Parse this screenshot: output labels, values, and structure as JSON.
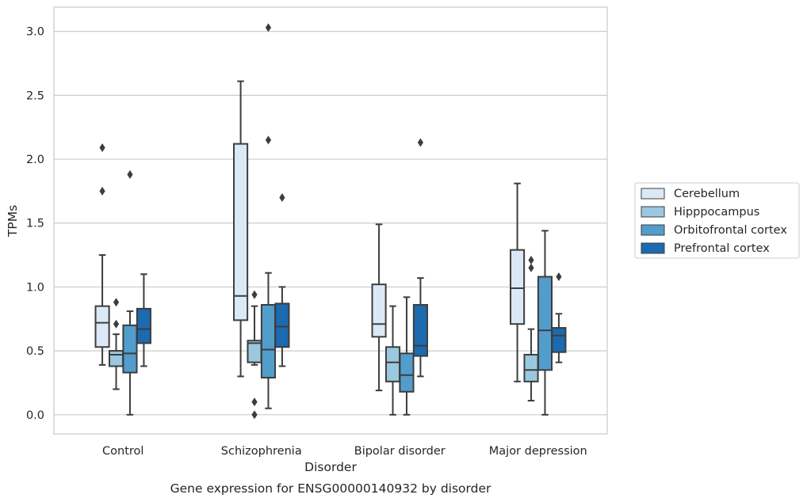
{
  "chart_data": {
    "type": "box",
    "title": "Gene expression for ENSG00000140932 by disorder",
    "xlabel": "Disorder",
    "ylabel": "TPMs",
    "ylim": [
      -0.15,
      3.19
    ],
    "yticks": [
      "0.0",
      "0.5",
      "1.0",
      "1.5",
      "2.0",
      "2.5",
      "3.0"
    ],
    "grid": "horizontal",
    "legend_position": "right",
    "categories": [
      "Control",
      "Schizophrenia",
      "Bipolar disorder",
      "Major depression"
    ],
    "series": [
      {
        "name": "Cerebellum",
        "color": "#dbe9f6",
        "boxes": [
          {
            "whislo": 0.39,
            "q1": 0.53,
            "med": 0.72,
            "q3": 0.85,
            "whishi": 1.25,
            "fliers": [
              1.75,
              2.09
            ]
          },
          {
            "whislo": 0.3,
            "q1": 0.74,
            "med": 0.93,
            "q3": 2.12,
            "whishi": 2.61,
            "fliers": []
          },
          {
            "whislo": 0.19,
            "q1": 0.61,
            "med": 0.71,
            "q3": 1.02,
            "whishi": 1.49,
            "fliers": []
          },
          {
            "whislo": 0.26,
            "q1": 0.71,
            "med": 0.99,
            "q3": 1.29,
            "whishi": 1.81,
            "fliers": []
          }
        ]
      },
      {
        "name": "Hipppocampus",
        "color": "#9ac8e0",
        "boxes": [
          {
            "whislo": 0.2,
            "q1": 0.38,
            "med": 0.47,
            "q3": 0.5,
            "whishi": 0.63,
            "fliers": [
              0.71,
              0.88
            ]
          },
          {
            "whislo": 0.39,
            "q1": 0.41,
            "med": 0.56,
            "q3": 0.58,
            "whishi": 0.85,
            "fliers": [
              0.94,
              0.1,
              0.0
            ]
          },
          {
            "whislo": 0.0,
            "q1": 0.26,
            "med": 0.41,
            "q3": 0.53,
            "whishi": 0.85,
            "fliers": []
          },
          {
            "whislo": 0.11,
            "q1": 0.26,
            "med": 0.35,
            "q3": 0.47,
            "whishi": 0.67,
            "fliers": [
              1.15,
              1.21
            ]
          }
        ]
      },
      {
        "name": "Orbitofrontal cortex",
        "color": "#529dcc",
        "boxes": [
          {
            "whislo": 0.0,
            "q1": 0.33,
            "med": 0.48,
            "q3": 0.7,
            "whishi": 0.81,
            "fliers": [
              1.88
            ]
          },
          {
            "whislo": 0.05,
            "q1": 0.29,
            "med": 0.51,
            "q3": 0.86,
            "whishi": 1.11,
            "fliers": [
              2.15,
              3.03
            ]
          },
          {
            "whislo": 0.0,
            "q1": 0.18,
            "med": 0.31,
            "q3": 0.48,
            "whishi": 0.92,
            "fliers": []
          },
          {
            "whislo": 0.0,
            "q1": 0.35,
            "med": 0.66,
            "q3": 1.08,
            "whishi": 1.44,
            "fliers": []
          }
        ]
      },
      {
        "name": "Prefrontal cortex",
        "color": "#1c6aaf",
        "boxes": [
          {
            "whislo": 0.38,
            "q1": 0.56,
            "med": 0.67,
            "q3": 0.83,
            "whishi": 1.1,
            "fliers": []
          },
          {
            "whislo": 0.38,
            "q1": 0.53,
            "med": 0.69,
            "q3": 0.87,
            "whishi": 1.0,
            "fliers": [
              1.7
            ]
          },
          {
            "whislo": 0.3,
            "q1": 0.46,
            "med": 0.54,
            "q3": 0.86,
            "whishi": 1.07,
            "fliers": [
              2.13
            ]
          },
          {
            "whislo": 0.41,
            "q1": 0.49,
            "med": 0.62,
            "q3": 0.68,
            "whishi": 0.79,
            "fliers": [
              1.08
            ]
          }
        ]
      }
    ]
  }
}
